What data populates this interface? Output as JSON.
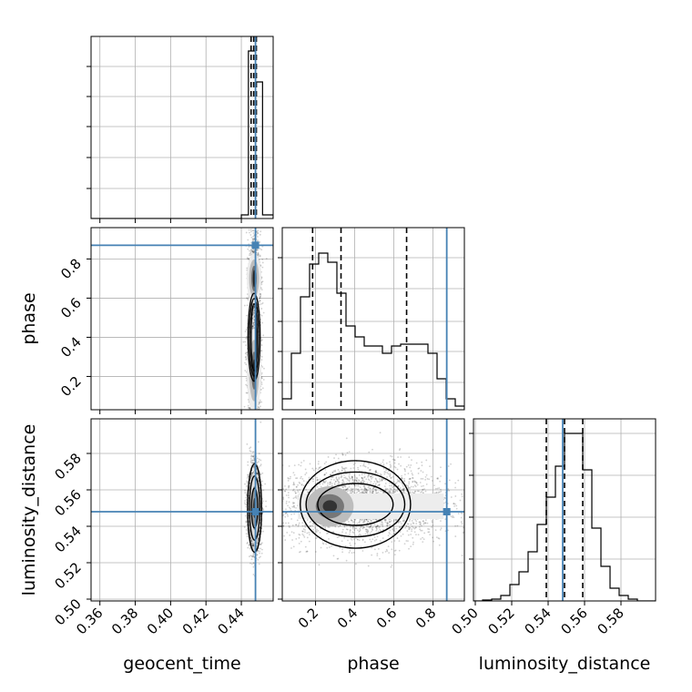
{
  "chart_data": {
    "type": "corner",
    "parameters": [
      "geocent_time",
      "phase",
      "luminosity_distance"
    ],
    "truth_color": "#4682b4",
    "truths": {
      "geocent_time": 0.448,
      "phase": 0.87,
      "luminosity_distance": 0.548
    },
    "ranges": {
      "geocent_time": [
        0.355,
        0.458
      ],
      "phase": [
        0.03,
        0.96
      ],
      "luminosity_distance": [
        0.499,
        0.599
      ]
    },
    "ticks": {
      "geocent_time": {
        "values": [
          0.36,
          0.38,
          0.4,
          0.42,
          0.44
        ],
        "labels": [
          "0.36",
          "0.38",
          "0.40",
          "0.42",
          "0.44"
        ]
      },
      "phase": {
        "values": [
          0.2,
          0.4,
          0.6,
          0.8
        ],
        "labels": [
          "0.2",
          "0.4",
          "0.6",
          "0.8"
        ]
      },
      "luminosity_distance": {
        "values": [
          0.5,
          0.52,
          0.54,
          0.56,
          0.58
        ],
        "labels": [
          "0.50",
          "0.52",
          "0.54",
          "0.56",
          "0.58"
        ]
      }
    },
    "histograms": {
      "geocent_time": {
        "bin_edges": [
          0.355,
          0.44,
          0.444,
          0.448,
          0.452,
          0.458
        ],
        "counts": [
          0,
          0.02,
          0.92,
          0.75,
          0.02
        ],
        "quantiles": [
          0.4455,
          0.447,
          0.4485
        ]
      },
      "phase": {
        "bin_edges": [
          0.03,
          0.0765,
          0.123,
          0.1695,
          0.216,
          0.2625,
          0.309,
          0.3555,
          0.402,
          0.4485,
          0.495,
          0.5415,
          0.588,
          0.6345,
          0.681,
          0.7275,
          0.774,
          0.8205,
          0.867,
          0.9135,
          0.96
        ],
        "counts": [
          0.06,
          0.31,
          0.62,
          0.8,
          0.86,
          0.81,
          0.64,
          0.46,
          0.4,
          0.35,
          0.35,
          0.31,
          0.35,
          0.36,
          0.36,
          0.36,
          0.31,
          0.17,
          0.06,
          0.02
        ],
        "quantiles": [
          0.185,
          0.33,
          0.665
        ]
      },
      "luminosity_distance": {
        "bin_edges": [
          0.499,
          0.504,
          0.509,
          0.514,
          0.519,
          0.524,
          0.529,
          0.534,
          0.539,
          0.544,
          0.549,
          0.554,
          0.559,
          0.564,
          0.569,
          0.574,
          0.579,
          0.584,
          0.589,
          0.594,
          0.599
        ],
        "counts": [
          0,
          0.005,
          0.01,
          0.03,
          0.09,
          0.16,
          0.27,
          0.42,
          0.57,
          0.74,
          0.92,
          0.92,
          0.72,
          0.4,
          0.19,
          0.07,
          0.03,
          0.01,
          0,
          0
        ],
        "quantiles": [
          0.539,
          0.549,
          0.559
        ]
      }
    },
    "joint": {
      "geocent_time__phase": {
        "mean": [
          0.4475,
          0.35
        ],
        "std": [
          0.0018,
          0.22
        ],
        "modes": [
          [
            0.4472,
            0.23
          ],
          [
            0.4475,
            0.7
          ]
        ]
      },
      "geocent_time__luminosity_distance": {
        "mean": [
          0.4475,
          0.55
        ],
        "std": [
          0.0018,
          0.011
        ]
      },
      "phase__luminosity_distance": {
        "mean": [
          0.45,
          0.552
        ],
        "std": [
          0.22,
          0.011
        ],
        "mode": [
          0.25,
          0.551
        ]
      }
    }
  }
}
